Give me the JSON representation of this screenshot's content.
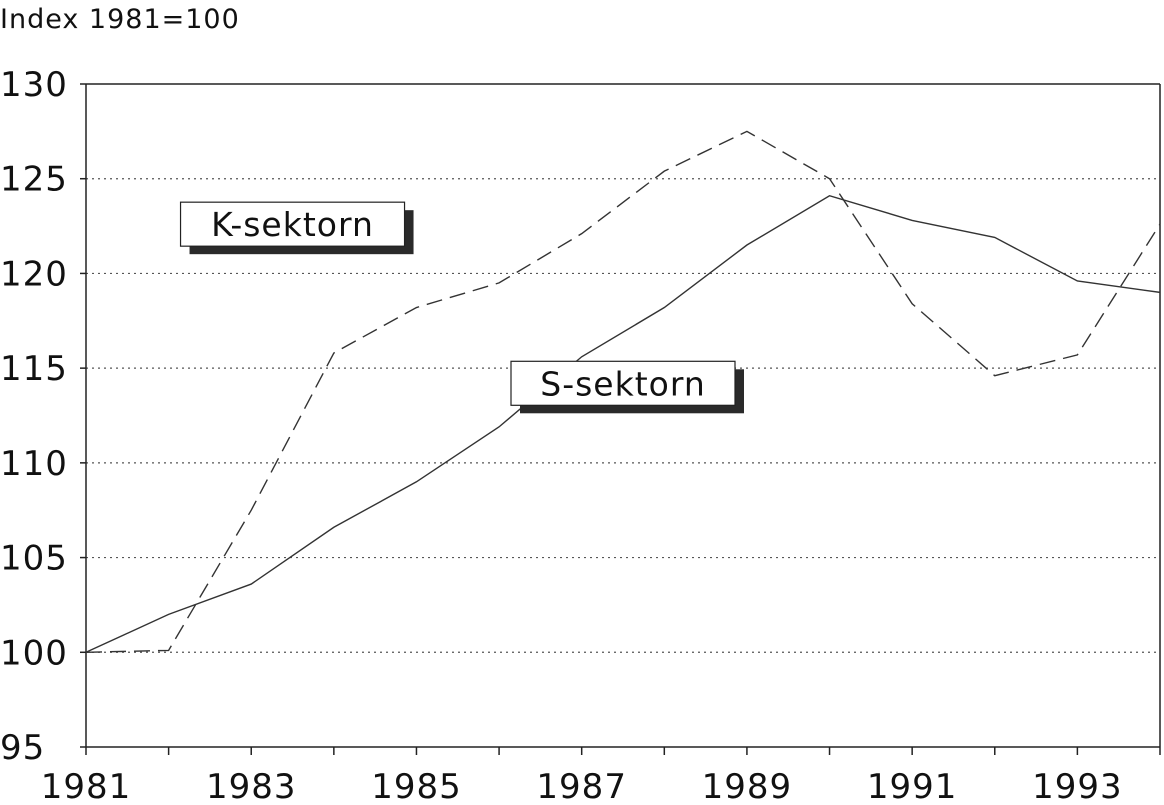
{
  "chart_data": {
    "type": "line",
    "title": "",
    "unit_label": "Index 1981=100",
    "xlabel": "",
    "ylabel": "",
    "x": [
      1981,
      1982,
      1983,
      1984,
      1985,
      1986,
      1987,
      1988,
      1989,
      1990,
      1991,
      1992,
      1993,
      1994
    ],
    "xlim": [
      1981,
      1994
    ],
    "ylim": [
      95,
      130
    ],
    "x_tick_labels": [
      "1981",
      "1983",
      "1985",
      "1987",
      "1989",
      "1991",
      "1993"
    ],
    "y_tick_labels": [
      "95",
      "100",
      "105",
      "110",
      "115",
      "120",
      "125",
      "130"
    ],
    "grid": "horizontal dotted",
    "series": [
      {
        "name": "K-sektorn",
        "style": "dashed",
        "values": [
          100,
          100.1,
          107.5,
          115.8,
          118.2,
          119.5,
          122.1,
          125.4,
          127.5,
          125.0,
          118.4,
          114.6,
          115.7,
          122.6
        ]
      },
      {
        "name": "S-sektorn",
        "style": "solid",
        "values": [
          100,
          102.0,
          103.6,
          106.6,
          109.0,
          111.9,
          115.6,
          118.2,
          121.5,
          124.1,
          122.8,
          121.9,
          119.6,
          119.0
        ]
      }
    ],
    "annotations": [
      {
        "text": "K-sektorn",
        "series": "K-sektorn",
        "x": 1983.5,
        "y": 122.6
      },
      {
        "text": "S-sektorn",
        "series": "S-sektorn",
        "x": 1987.5,
        "y": 114.2
      }
    ],
    "colors": {
      "lines": "#333333",
      "grid": "#555555",
      "box_shadow": "#2a2a2a"
    }
  }
}
